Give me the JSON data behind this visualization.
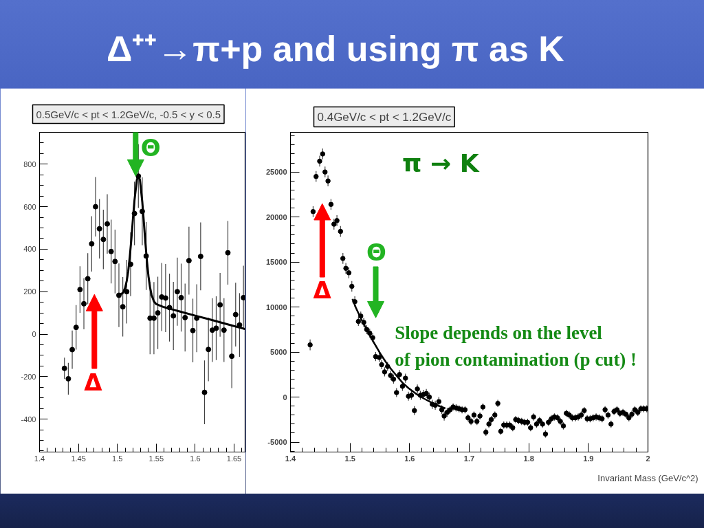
{
  "chart_data": [
    {
      "type": "other",
      "title": "Δ⁺⁺→π+p and using π as K"
    },
    {
      "type": "scatter",
      "title": "0.5GeV/c < pt < 1.2GeV/c, -0.5 < y < 0.5",
      "xlim": [
        1.4,
        1.665
      ],
      "ylim": [
        -555,
        950
      ],
      "xticks": [
        1.4,
        1.45,
        1.5,
        1.55,
        1.6,
        1.65
      ],
      "yticks": [
        -400,
        -200,
        0,
        200,
        400,
        600,
        800
      ],
      "series": [
        {
          "type": "scatter",
          "color": "#000000",
          "marker": "circle",
          "x": [
            1.432,
            1.437,
            1.442,
            1.447,
            1.452,
            1.457,
            1.462,
            1.467,
            1.472,
            1.477,
            1.482,
            1.487,
            1.492,
            1.497,
            1.502,
            1.507,
            1.512,
            1.517,
            1.522,
            1.527,
            1.532,
            1.537,
            1.542,
            1.547,
            1.552,
            1.557,
            1.562,
            1.567,
            1.572,
            1.577,
            1.582,
            1.587,
            1.592,
            1.597,
            1.602,
            1.607,
            1.612,
            1.617,
            1.622,
            1.627,
            1.632,
            1.637,
            1.642,
            1.647,
            1.652,
            1.657,
            1.662
          ],
          "values": [
            -161,
            -210,
            -73,
            32,
            210,
            143,
            261,
            425,
            600,
            496,
            446,
            519,
            389,
            342,
            183,
            129,
            200,
            329,
            568,
            744,
            578,
            368,
            75,
            75,
            100,
            175,
            170,
            125,
            86,
            200,
            172,
            78,
            346,
            17,
            75,
            366,
            -274,
            -72,
            19,
            28,
            138,
            19,
            383,
            -104,
            92,
            43,
            172
          ],
          "errors": [
            50,
            75,
            90,
            105,
            110,
            120,
            120,
            130,
            140,
            140,
            140,
            140,
            150,
            150,
            150,
            140,
            150,
            150,
            150,
            150,
            160,
            160,
            170,
            170,
            170,
            160,
            160,
            160,
            160,
            160,
            160,
            160,
            160,
            150,
            160,
            160,
            150,
            150,
            150,
            150,
            150,
            150,
            150,
            150,
            150,
            150,
            150
          ]
        },
        {
          "type": "line",
          "color": "#000000",
          "x": [
            1.504,
            1.507,
            1.51,
            1.512,
            1.514,
            1.516,
            1.518,
            1.52,
            1.522,
            1.525,
            1.527,
            1.529,
            1.532,
            1.534,
            1.536,
            1.538,
            1.54,
            1.542,
            1.544,
            1.547,
            1.55,
            1.56,
            1.58,
            1.6,
            1.62,
            1.64,
            1.665
          ],
          "values": [
            187,
            194,
            218,
            250,
            297,
            366,
            447,
            543,
            630,
            725,
            749,
            726,
            624,
            529,
            431,
            344,
            272,
            220,
            184,
            154,
            141,
            127,
            107,
            87,
            68,
            48,
            23
          ]
        }
      ],
      "annotations": [
        "Θ",
        "Δ"
      ]
    },
    {
      "type": "scatter",
      "title": "0.4GeV/c < pt < 1.2GeV/c",
      "xlabel": "Invariant Mass (GeV/c^2)",
      "xlim": [
        1.4,
        2
      ],
      "ylim": [
        -6100,
        29400
      ],
      "xticks": [
        1.4,
        1.5,
        1.6,
        1.7,
        1.8,
        1.9,
        2
      ],
      "yticks": [
        -5000,
        0,
        5000,
        10000,
        15000,
        20000,
        25000
      ],
      "series": [
        {
          "type": "scatter",
          "color": "#000000",
          "marker": "circle",
          "x": [
            1.433,
            1.438,
            1.443,
            1.449,
            1.454,
            1.458,
            1.463,
            1.468,
            1.473,
            1.478,
            1.484,
            1.488,
            1.493,
            1.498,
            1.503,
            1.508,
            1.514,
            1.518,
            1.523,
            1.528,
            1.533,
            1.538,
            1.543,
            1.549,
            1.553,
            1.558,
            1.563,
            1.568,
            1.573,
            1.578,
            1.583,
            1.588,
            1.593,
            1.598,
            1.603,
            1.608,
            1.613,
            1.618,
            1.623,
            1.628,
            1.633,
            1.638,
            1.643,
            1.649,
            1.654,
            1.658,
            1.663,
            1.668,
            1.673,
            1.678,
            1.683,
            1.688,
            1.693,
            1.698,
            1.703,
            1.708,
            1.713,
            1.718,
            1.723,
            1.728,
            1.733,
            1.737,
            1.743,
            1.748,
            1.753,
            1.758,
            1.763,
            1.768,
            1.773,
            1.778,
            1.783,
            1.788,
            1.793,
            1.798,
            1.803,
            1.808,
            1.813,
            1.818,
            1.823,
            1.828,
            1.833,
            1.838,
            1.843,
            1.848,
            1.853,
            1.858,
            1.863,
            1.868,
            1.873,
            1.878,
            1.883,
            1.888,
            1.893,
            1.898,
            1.903,
            1.908,
            1.913,
            1.918,
            1.923,
            1.928,
            1.933,
            1.938,
            1.943,
            1.948,
            1.953,
            1.958,
            1.963,
            1.968,
            1.973,
            1.978,
            1.983,
            1.988,
            1.993,
            1.998
          ],
          "values": [
            5800,
            20600,
            24500,
            26200,
            27000,
            25000,
            24000,
            21400,
            19200,
            19600,
            18400,
            15400,
            14300,
            13800,
            12300,
            10600,
            8400,
            9000,
            8300,
            7500,
            7100,
            6600,
            4500,
            4400,
            3600,
            2800,
            3400,
            2400,
            2000,
            500,
            2500,
            1200,
            2100,
            100,
            200,
            -1500,
            900,
            200,
            300,
            400,
            0,
            -800,
            -900,
            -500,
            -1400,
            -2100,
            -1700,
            -1400,
            -1100,
            -1200,
            -1300,
            -1400,
            -1400,
            -2300,
            -2700,
            -2000,
            -2700,
            -2100,
            -1100,
            -3900,
            -3000,
            -2500,
            -2000,
            -700,
            -3800,
            -3100,
            -3100,
            -3100,
            -3400,
            -2500,
            -2600,
            -2700,
            -2800,
            -2800,
            -3400,
            -2200,
            -3000,
            -2600,
            -3000,
            -4100,
            -2800,
            -2400,
            -2200,
            -2300,
            -2700,
            -3200,
            -1800,
            -2000,
            -2300,
            -2300,
            -2200,
            -2000,
            -1500,
            -2400,
            -2400,
            -2300,
            -2200,
            -2300,
            -2400,
            -1400,
            -2000,
            -3000,
            -1600,
            -1400,
            -1800,
            -1700,
            -1900,
            -2300,
            -1900,
            -1400,
            -1700,
            -1300,
            -1300,
            -1300
          ],
          "errors": [
            600,
            600,
            600,
            600,
            600,
            600,
            600,
            600,
            600,
            600,
            600,
            600,
            600,
            600,
            600,
            600,
            500,
            500,
            500,
            500,
            500,
            500,
            500,
            500,
            500,
            500,
            500,
            500,
            500,
            500,
            500,
            500,
            500,
            500,
            500,
            500,
            500,
            500,
            500,
            500,
            500,
            500,
            500,
            500,
            500,
            500,
            500,
            400,
            400,
            400,
            400,
            400,
            400,
            400,
            400,
            400,
            400,
            400,
            400,
            400,
            400,
            400,
            400,
            400,
            400,
            400,
            400,
            400,
            400,
            400,
            400,
            400,
            400,
            400,
            400,
            400,
            400,
            400,
            400,
            400,
            400,
            400,
            400,
            400,
            400,
            400,
            400,
            400,
            400,
            400,
            400,
            400,
            400,
            400,
            400,
            400,
            400,
            400,
            400,
            400,
            400,
            400,
            400,
            400,
            400,
            400,
            400,
            400,
            400,
            400,
            400,
            400,
            400,
            400
          ]
        },
        {
          "type": "line",
          "color": "#000000",
          "x": [
            1.504,
            1.51,
            1.517,
            1.523,
            1.529,
            1.536,
            1.544,
            1.552,
            1.56,
            1.569,
            1.579,
            1.588,
            1.598,
            1.61,
            1.621,
            1.632,
            1.644,
            1.66
          ],
          "values": [
            10900,
            9900,
            8900,
            8100,
            7400,
            6500,
            5600,
            4700,
            3900,
            3100,
            2300,
            1600,
            1000,
            400,
            -50,
            -450,
            -850,
            -1250
          ]
        }
      ],
      "annotations": [
        "π → K",
        "Δ",
        "Θ",
        "Slope depends on the level\nof pion contamination (p cut) !"
      ]
    }
  ]
}
